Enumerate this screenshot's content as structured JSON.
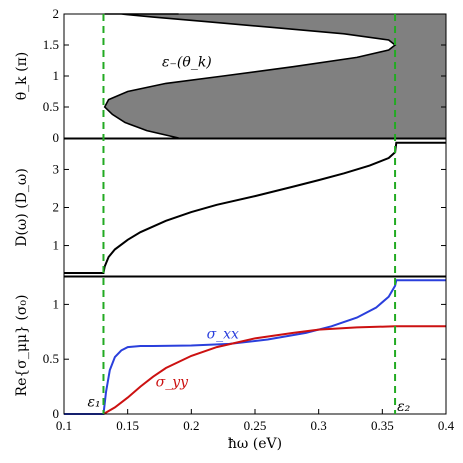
{
  "colors": {
    "fill": "#808080",
    "black": "#000000",
    "green": "#22aa22",
    "blue": "#2a3fdc",
    "red": "#cc1111"
  },
  "chart_data": [
    {
      "type": "area",
      "panel": "top",
      "ylabel": "θ_k (π)",
      "ylim": [
        0,
        2
      ],
      "yticks": [
        0,
        0.5,
        1,
        1.5,
        2
      ],
      "annotation": "ε₋(θ_k)",
      "series": [
        {
          "description": "boundary curve epsilon_minus(theta), filled region to the right",
          "x": [
            0.19,
            0.165,
            0.148,
            0.138,
            0.132,
            0.135,
            0.15,
            0.18,
            0.225,
            0.28,
            0.33,
            0.355,
            0.36,
            0.355,
            0.32,
            0.265,
            0.21,
            0.17,
            0.145,
            0.134,
            0.132,
            0.14,
            0.16,
            0.19
          ],
          "y": [
            0.0,
            0.12,
            0.25,
            0.38,
            0.5,
            0.62,
            0.75,
            0.88,
            1.0,
            1.15,
            1.3,
            1.42,
            1.5,
            1.58,
            1.68,
            1.78,
            1.88,
            1.95,
            2.0,
            2.0,
            2.0,
            2.0,
            2.0,
            2.0
          ]
        }
      ]
    },
    {
      "type": "line",
      "panel": "middle",
      "ylabel": "D(ω) (D_ω)",
      "ylim": [
        0.2,
        3.8
      ],
      "yticks": [
        1,
        2,
        3
      ],
      "series": [
        {
          "x": [
            0.1,
            0.131,
            0.132,
            0.135,
            0.14,
            0.15,
            0.16,
            0.18,
            0.2,
            0.22,
            0.25,
            0.28,
            0.3,
            0.32,
            0.34,
            0.355,
            0.36,
            0.361,
            0.4
          ],
          "y": [
            0.28,
            0.28,
            0.45,
            0.7,
            0.9,
            1.15,
            1.35,
            1.65,
            1.88,
            2.07,
            2.3,
            2.55,
            2.72,
            2.9,
            3.1,
            3.3,
            3.45,
            3.7,
            3.7
          ]
        }
      ]
    },
    {
      "type": "line",
      "panel": "bottom",
      "xlabel": "ħω (eV)",
      "ylabel": "Re{σ_μμ} (σ₀)",
      "xlim": [
        0.1,
        0.4
      ],
      "xticks": [
        0.1,
        0.15,
        0.2,
        0.25,
        0.3,
        0.35,
        0.4
      ],
      "ylim": [
        0,
        1.25
      ],
      "yticks": [
        0,
        0.5,
        1
      ],
      "series": [
        {
          "name": "σ_xx",
          "x": [
            0.1,
            0.131,
            0.133,
            0.136,
            0.14,
            0.145,
            0.15,
            0.16,
            0.17,
            0.2,
            0.23,
            0.26,
            0.29,
            0.31,
            0.33,
            0.345,
            0.355,
            0.36,
            0.361,
            0.4
          ],
          "y": [
            0.0,
            0.0,
            0.2,
            0.4,
            0.52,
            0.58,
            0.61,
            0.62,
            0.62,
            0.625,
            0.64,
            0.68,
            0.74,
            0.8,
            0.88,
            0.97,
            1.07,
            1.17,
            1.22,
            1.22
          ]
        },
        {
          "name": "σ_yy",
          "x": [
            0.131,
            0.14,
            0.15,
            0.16,
            0.17,
            0.18,
            0.2,
            0.22,
            0.25,
            0.28,
            0.3,
            0.33,
            0.36,
            0.4
          ],
          "y": [
            0.0,
            0.06,
            0.15,
            0.25,
            0.34,
            0.42,
            0.53,
            0.61,
            0.69,
            0.74,
            0.77,
            0.79,
            0.8,
            0.8
          ]
        }
      ],
      "markers": [
        {
          "label": "ε₁",
          "x": 0.131
        },
        {
          "label": "ε₂",
          "x": 0.36
        }
      ]
    }
  ]
}
